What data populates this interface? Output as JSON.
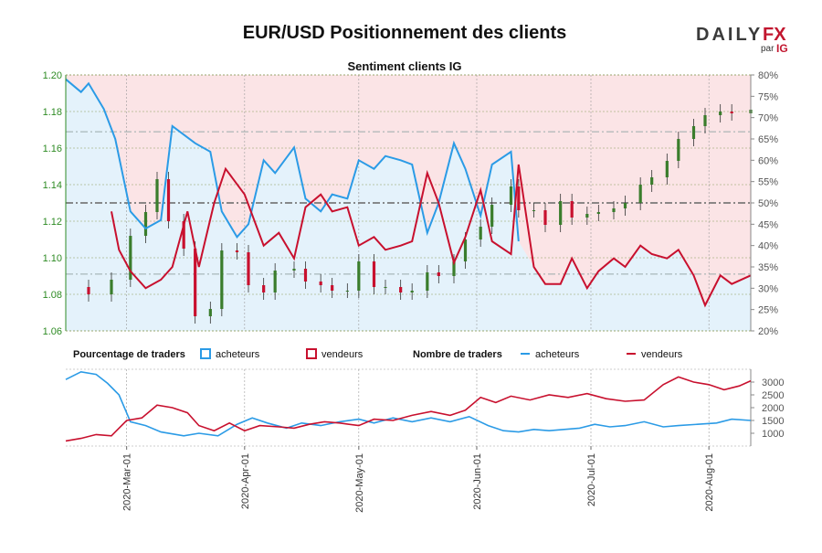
{
  "header": {
    "title": "EUR/USD Positionnement des clients",
    "brand": {
      "daily": "DAILY",
      "fx": "FX",
      "par": "par",
      "ig": "IG"
    }
  },
  "colors": {
    "buyers": "#2b9be6",
    "sellers": "#c8102e",
    "up_candle": "#3a7d2c",
    "down_candle": "#c8102e",
    "buyer_fill": "#e4f2fb",
    "seller_fill": "#fbe4e6",
    "left_axis": "#2e8b24"
  },
  "chart_data": [
    {
      "type": "line",
      "title": "Sentiment clients IG",
      "x_ticks": [
        "2020-Mar-01",
        "2020-Apr-01",
        "2020-May-01",
        "2020-Jun-01",
        "2020-Jul-01",
        "2020-Aug-01"
      ],
      "x_range": [
        "2020-02-14",
        "2020-08-12"
      ],
      "left_axis": {
        "label": "",
        "ylim": [
          1.06,
          1.2
        ],
        "ticks": [
          "1.06",
          "1.08",
          "1.10",
          "1.12",
          "1.14",
          "1.16",
          "1.18",
          "1.20"
        ]
      },
      "right_axis": {
        "label": "",
        "ylim": [
          20,
          80
        ],
        "ticks": [
          "20%",
          "25%",
          "30%",
          "35%",
          "40%",
          "45%",
          "50%",
          "55%",
          "60%",
          "65%",
          "70%",
          "75%",
          "80%"
        ]
      },
      "reference_lines": [
        50,
        33.3,
        66.7
      ],
      "price_close": [
        [
          "2020-02-14",
          1.084
        ],
        [
          "2020-02-20",
          1.08
        ],
        [
          "2020-02-26",
          1.088
        ],
        [
          "2020-03-02",
          1.112
        ],
        [
          "2020-03-06",
          1.125
        ],
        [
          "2020-03-09",
          1.143
        ],
        [
          "2020-03-12",
          1.12
        ],
        [
          "2020-03-16",
          1.105
        ],
        [
          "2020-03-19",
          1.068
        ],
        [
          "2020-03-23",
          1.072
        ],
        [
          "2020-03-26",
          1.104
        ],
        [
          "2020-03-30",
          1.103
        ],
        [
          "2020-04-02",
          1.085
        ],
        [
          "2020-04-06",
          1.081
        ],
        [
          "2020-04-09",
          1.093
        ],
        [
          "2020-04-14",
          1.094
        ],
        [
          "2020-04-17",
          1.087
        ],
        [
          "2020-04-21",
          1.085
        ],
        [
          "2020-04-24",
          1.082
        ],
        [
          "2020-04-28",
          1.082
        ],
        [
          "2020-05-01",
          1.098
        ],
        [
          "2020-05-05",
          1.084
        ],
        [
          "2020-05-08",
          1.084
        ],
        [
          "2020-05-12",
          1.081
        ],
        [
          "2020-05-15",
          1.082
        ],
        [
          "2020-05-19",
          1.092
        ],
        [
          "2020-05-22",
          1.09
        ],
        [
          "2020-05-26",
          1.098
        ],
        [
          "2020-05-29",
          1.11
        ],
        [
          "2020-06-02",
          1.117
        ],
        [
          "2020-06-05",
          1.129
        ],
        [
          "2020-06-10",
          1.139
        ],
        [
          "2020-06-12",
          1.126
        ],
        [
          "2020-06-16",
          1.126
        ],
        [
          "2020-06-19",
          1.118
        ],
        [
          "2020-06-23",
          1.131
        ],
        [
          "2020-06-26",
          1.122
        ],
        [
          "2020-06-30",
          1.124
        ],
        [
          "2020-07-03",
          1.125
        ],
        [
          "2020-07-07",
          1.127
        ],
        [
          "2020-07-10",
          1.13
        ],
        [
          "2020-07-14",
          1.14
        ],
        [
          "2020-07-17",
          1.144
        ],
        [
          "2020-07-21",
          1.153
        ],
        [
          "2020-07-24",
          1.165
        ],
        [
          "2020-07-28",
          1.172
        ],
        [
          "2020-07-31",
          1.178
        ],
        [
          "2020-08-04",
          1.18
        ],
        [
          "2020-08-07",
          1.179
        ],
        [
          "2020-08-12",
          1.181
        ]
      ],
      "series": [
        {
          "name": "acheteurs",
          "values": [
            [
              "2020-02-14",
              79
            ],
            [
              "2020-02-18",
              76
            ],
            [
              "2020-02-20",
              78
            ],
            [
              "2020-02-24",
              72
            ],
            [
              "2020-02-27",
              65
            ],
            [
              "2020-03-02",
              48
            ],
            [
              "2020-03-06",
              44
            ],
            [
              "2020-03-10",
              46
            ],
            [
              "2020-03-13",
              68
            ],
            [
              "2020-03-16",
              66
            ],
            [
              "2020-03-19",
              64
            ],
            [
              "2020-03-23",
              62
            ],
            [
              "2020-03-26",
              48
            ],
            [
              "2020-03-30",
              42
            ],
            [
              "2020-04-02",
              45
            ],
            [
              "2020-04-06",
              60
            ],
            [
              "2020-04-09",
              57
            ],
            [
              "2020-04-14",
              63
            ],
            [
              "2020-04-17",
              51
            ],
            [
              "2020-04-21",
              48
            ],
            [
              "2020-04-24",
              52
            ],
            [
              "2020-04-28",
              51
            ],
            [
              "2020-05-01",
              60
            ],
            [
              "2020-05-05",
              58
            ],
            [
              "2020-05-08",
              61
            ],
            [
              "2020-05-12",
              60
            ],
            [
              "2020-05-15",
              59
            ],
            [
              "2020-05-19",
              43
            ],
            [
              "2020-05-22",
              50
            ],
            [
              "2020-05-26",
              64
            ],
            [
              "2020-05-29",
              58
            ],
            [
              "2020-06-02",
              47
            ],
            [
              "2020-06-05",
              59
            ],
            [
              "2020-06-10",
              62
            ],
            [
              "2020-06-12",
              41
            ]
          ]
        },
        {
          "name": "vendeurs",
          "values": [
            [
              "2020-02-26",
              48
            ],
            [
              "2020-02-28",
              39
            ],
            [
              "2020-03-02",
              34
            ],
            [
              "2020-03-06",
              30
            ],
            [
              "2020-03-10",
              32
            ],
            [
              "2020-03-13",
              35
            ],
            [
              "2020-03-17",
              48
            ],
            [
              "2020-03-20",
              35
            ],
            [
              "2020-03-24",
              50
            ],
            [
              "2020-03-27",
              58
            ],
            [
              "2020-04-01",
              52
            ],
            [
              "2020-04-06",
              40
            ],
            [
              "2020-04-10",
              43
            ],
            [
              "2020-04-14",
              37
            ],
            [
              "2020-04-17",
              49
            ],
            [
              "2020-04-21",
              52
            ],
            [
              "2020-04-24",
              48
            ],
            [
              "2020-04-28",
              49
            ],
            [
              "2020-05-01",
              40
            ],
            [
              "2020-05-05",
              42
            ],
            [
              "2020-05-08",
              39
            ],
            [
              "2020-05-12",
              40
            ],
            [
              "2020-05-15",
              41
            ],
            [
              "2020-05-19",
              57
            ],
            [
              "2020-05-22",
              50
            ],
            [
              "2020-05-26",
              36
            ],
            [
              "2020-05-29",
              42
            ],
            [
              "2020-06-02",
              53
            ],
            [
              "2020-06-05",
              41
            ],
            [
              "2020-06-10",
              38
            ],
            [
              "2020-06-12",
              59
            ],
            [
              "2020-06-16",
              35
            ],
            [
              "2020-06-19",
              31
            ],
            [
              "2020-06-23",
              31
            ],
            [
              "2020-06-26",
              37
            ],
            [
              "2020-06-30",
              30
            ],
            [
              "2020-07-03",
              34
            ],
            [
              "2020-07-07",
              37
            ],
            [
              "2020-07-10",
              35
            ],
            [
              "2020-07-14",
              40
            ],
            [
              "2020-07-17",
              38
            ],
            [
              "2020-07-21",
              37
            ],
            [
              "2020-07-24",
              39
            ],
            [
              "2020-07-28",
              33
            ],
            [
              "2020-07-31",
              26
            ],
            [
              "2020-08-04",
              33
            ],
            [
              "2020-08-07",
              31
            ],
            [
              "2020-08-12",
              33
            ]
          ]
        }
      ]
    },
    {
      "type": "line",
      "title": "",
      "legend": {
        "percent_label": "Pourcentage de traders",
        "count_label": "Nombre de traders",
        "buyers": "acheteurs",
        "sellers": "vendeurs"
      },
      "x_range": [
        "2020-02-14",
        "2020-08-12"
      ],
      "ylim": [
        500,
        3500
      ],
      "y_ticks": [
        "1000",
        "1500",
        "2000",
        "2500",
        "3000"
      ],
      "series": [
        {
          "name": "acheteurs",
          "values": [
            [
              "2020-02-14",
              3100
            ],
            [
              "2020-02-18",
              3400
            ],
            [
              "2020-02-22",
              3300
            ],
            [
              "2020-02-25",
              2950
            ],
            [
              "2020-02-28",
              2500
            ],
            [
              "2020-03-02",
              1450
            ],
            [
              "2020-03-06",
              1300
            ],
            [
              "2020-03-10",
              1050
            ],
            [
              "2020-03-16",
              900
            ],
            [
              "2020-03-20",
              1000
            ],
            [
              "2020-03-25",
              900
            ],
            [
              "2020-03-30",
              1350
            ],
            [
              "2020-04-03",
              1600
            ],
            [
              "2020-04-07",
              1400
            ],
            [
              "2020-04-12",
              1200
            ],
            [
              "2020-04-16",
              1400
            ],
            [
              "2020-04-21",
              1300
            ],
            [
              "2020-04-26",
              1450
            ],
            [
              "2020-05-01",
              1550
            ],
            [
              "2020-05-05",
              1400
            ],
            [
              "2020-05-10",
              1600
            ],
            [
              "2020-05-15",
              1450
            ],
            [
              "2020-05-20",
              1600
            ],
            [
              "2020-05-25",
              1450
            ],
            [
              "2020-05-30",
              1650
            ],
            [
              "2020-06-04",
              1300
            ],
            [
              "2020-06-08",
              1100
            ],
            [
              "2020-06-12",
              1050
            ],
            [
              "2020-06-16",
              1150
            ],
            [
              "2020-06-20",
              1100
            ],
            [
              "2020-06-24",
              1150
            ],
            [
              "2020-06-28",
              1200
            ],
            [
              "2020-07-02",
              1350
            ],
            [
              "2020-07-06",
              1250
            ],
            [
              "2020-07-10",
              1300
            ],
            [
              "2020-07-15",
              1450
            ],
            [
              "2020-07-20",
              1250
            ],
            [
              "2020-07-24",
              1300
            ],
            [
              "2020-07-29",
              1350
            ],
            [
              "2020-08-03",
              1400
            ],
            [
              "2020-08-07",
              1550
            ],
            [
              "2020-08-12",
              1500
            ]
          ]
        },
        {
          "name": "vendeurs",
          "values": [
            [
              "2020-02-14",
              700
            ],
            [
              "2020-02-18",
              800
            ],
            [
              "2020-02-22",
              950
            ],
            [
              "2020-02-26",
              900
            ],
            [
              "2020-03-01",
              1500
            ],
            [
              "2020-03-05",
              1600
            ],
            [
              "2020-03-09",
              2100
            ],
            [
              "2020-03-13",
              2000
            ],
            [
              "2020-03-17",
              1800
            ],
            [
              "2020-03-20",
              1300
            ],
            [
              "2020-03-24",
              1100
            ],
            [
              "2020-03-28",
              1400
            ],
            [
              "2020-04-01",
              1100
            ],
            [
              "2020-04-05",
              1300
            ],
            [
              "2020-04-10",
              1250
            ],
            [
              "2020-04-14",
              1200
            ],
            [
              "2020-04-18",
              1350
            ],
            [
              "2020-04-22",
              1450
            ],
            [
              "2020-04-26",
              1400
            ],
            [
              "2020-05-01",
              1300
            ],
            [
              "2020-05-05",
              1550
            ],
            [
              "2020-05-10",
              1500
            ],
            [
              "2020-05-15",
              1700
            ],
            [
              "2020-05-20",
              1850
            ],
            [
              "2020-05-25",
              1700
            ],
            [
              "2020-05-29",
              1900
            ],
            [
              "2020-06-02",
              2400
            ],
            [
              "2020-06-06",
              2200
            ],
            [
              "2020-06-10",
              2450
            ],
            [
              "2020-06-15",
              2300
            ],
            [
              "2020-06-20",
              2500
            ],
            [
              "2020-06-25",
              2400
            ],
            [
              "2020-06-30",
              2550
            ],
            [
              "2020-07-05",
              2350
            ],
            [
              "2020-07-10",
              2250
            ],
            [
              "2020-07-15",
              2300
            ],
            [
              "2020-07-20",
              2900
            ],
            [
              "2020-07-24",
              3200
            ],
            [
              "2020-07-28",
              3000
            ],
            [
              "2020-08-01",
              2900
            ],
            [
              "2020-08-05",
              2700
            ],
            [
              "2020-08-09",
              2850
            ],
            [
              "2020-08-12",
              3050
            ]
          ]
        }
      ]
    }
  ]
}
